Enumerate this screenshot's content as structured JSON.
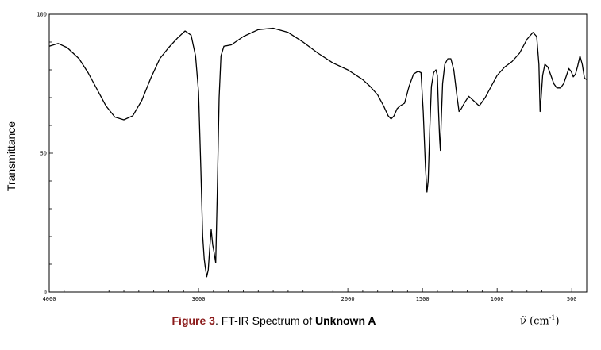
{
  "chart_data": {
    "type": "line",
    "title": "",
    "xlabel": "",
    "ylabel": "Transmittance",
    "xlim": [
      4000,
      400
    ],
    "ylim": [
      0,
      100
    ],
    "x_reversed": true,
    "grid": false,
    "xticks": [
      4000,
      3000,
      2000,
      1500,
      1000,
      500
    ],
    "xtick_labels": [
      "4000",
      "3000",
      "2000",
      "1500",
      "1000",
      "500"
    ],
    "yticks": [
      0,
      50,
      100
    ],
    "ytick_labels": [
      "0",
      "50",
      "100"
    ],
    "series": [
      {
        "values": [
          [
            4000,
            88.5
          ],
          [
            3940,
            89.5
          ],
          [
            3880,
            88.0
          ],
          [
            3800,
            84.0
          ],
          [
            3740,
            79.0
          ],
          [
            3680,
            73.0
          ],
          [
            3620,
            67.0
          ],
          [
            3560,
            63.0
          ],
          [
            3500,
            62.0
          ],
          [
            3440,
            63.5
          ],
          [
            3380,
            69.0
          ],
          [
            3320,
            77.0
          ],
          [
            3260,
            84.0
          ],
          [
            3200,
            88.0
          ],
          [
            3140,
            91.5
          ],
          [
            3090,
            94.0
          ],
          [
            3050,
            92.5
          ],
          [
            3020,
            85.0
          ],
          [
            3000,
            72.0
          ],
          [
            2985,
            45.0
          ],
          [
            2972,
            20.0
          ],
          [
            2962,
            12.0
          ],
          [
            2955,
            9.0
          ],
          [
            2945,
            5.5
          ],
          [
            2935,
            8.0
          ],
          [
            2925,
            16.0
          ],
          [
            2915,
            22.5
          ],
          [
            2905,
            17.0
          ],
          [
            2895,
            14.0
          ],
          [
            2885,
            10.5
          ],
          [
            2875,
            35.0
          ],
          [
            2862,
            70.0
          ],
          [
            2850,
            85.0
          ],
          [
            2830,
            88.5
          ],
          [
            2780,
            89.0
          ],
          [
            2700,
            92.0
          ],
          [
            2600,
            94.5
          ],
          [
            2500,
            95.0
          ],
          [
            2400,
            93.5
          ],
          [
            2300,
            90.0
          ],
          [
            2200,
            86.0
          ],
          [
            2100,
            82.5
          ],
          [
            2000,
            80.0
          ],
          [
            1900,
            76.5
          ],
          [
            1850,
            74.0
          ],
          [
            1800,
            71.0
          ],
          [
            1760,
            67.0
          ],
          [
            1730,
            63.5
          ],
          [
            1710,
            62.3
          ],
          [
            1690,
            63.5
          ],
          [
            1670,
            66.0
          ],
          [
            1650,
            67.0
          ],
          [
            1620,
            68.0
          ],
          [
            1590,
            74.0
          ],
          [
            1560,
            78.5
          ],
          [
            1530,
            79.5
          ],
          [
            1510,
            79.0
          ],
          [
            1495,
            65.0
          ],
          [
            1480,
            45.0
          ],
          [
            1470,
            36.0
          ],
          [
            1462,
            40.0
          ],
          [
            1450,
            60.0
          ],
          [
            1440,
            74.0
          ],
          [
            1425,
            79.0
          ],
          [
            1410,
            80.0
          ],
          [
            1400,
            78.0
          ],
          [
            1392,
            65.0
          ],
          [
            1385,
            55.0
          ],
          [
            1380,
            51.0
          ],
          [
            1375,
            60.0
          ],
          [
            1365,
            75.0
          ],
          [
            1350,
            82.0
          ],
          [
            1330,
            84.0
          ],
          [
            1310,
            84.0
          ],
          [
            1290,
            80.0
          ],
          [
            1270,
            71.0
          ],
          [
            1255,
            65.0
          ],
          [
            1240,
            66.0
          ],
          [
            1220,
            68.0
          ],
          [
            1190,
            70.5
          ],
          [
            1160,
            69.0
          ],
          [
            1120,
            67.0
          ],
          [
            1080,
            70.0
          ],
          [
            1040,
            74.0
          ],
          [
            1000,
            78.0
          ],
          [
            950,
            81.0
          ],
          [
            900,
            83.0
          ],
          [
            850,
            86.0
          ],
          [
            800,
            91.0
          ],
          [
            760,
            93.5
          ],
          [
            735,
            92.0
          ],
          [
            720,
            82.0
          ],
          [
            712,
            65.0
          ],
          [
            705,
            70.0
          ],
          [
            695,
            78.0
          ],
          [
            680,
            82.0
          ],
          [
            660,
            81.0
          ],
          [
            640,
            78.0
          ],
          [
            620,
            75.0
          ],
          [
            600,
            73.5
          ],
          [
            575,
            73.5
          ],
          [
            555,
            75.0
          ],
          [
            535,
            78.0
          ],
          [
            520,
            80.5
          ],
          [
            505,
            79.5
          ],
          [
            490,
            77.5
          ],
          [
            475,
            78.5
          ],
          [
            460,
            81.5
          ],
          [
            445,
            85.0
          ],
          [
            430,
            82.0
          ],
          [
            415,
            77.0
          ],
          [
            400,
            76.5
          ]
        ]
      }
    ]
  },
  "caption": {
    "figure_label": "Figure 3",
    "text": ". FT-IR Spectrum of ",
    "compound": "Unknown A"
  },
  "x_unit": {
    "symbol": "ν̃",
    "open": " (cm",
    "exponent": "-1",
    "close": ")"
  }
}
